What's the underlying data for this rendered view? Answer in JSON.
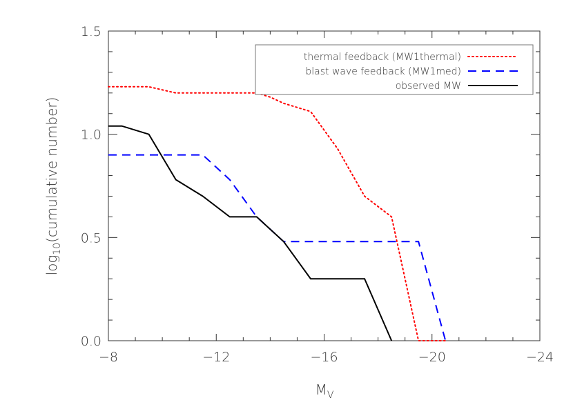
{
  "chart_data": {
    "type": "line",
    "xlabel": "M",
    "xlabel_sub": "V",
    "ylabel": "log",
    "ylabel_sub": "10",
    "ylabel_rest": "(cumulative number)",
    "xlim": [
      -8,
      -24
    ],
    "ylim": [
      0,
      1.5
    ],
    "x_ticks": [
      -8,
      -12,
      -16,
      -20,
      -24
    ],
    "x_tick_labels": [
      "−8",
      "−12",
      "−16",
      "−20",
      "−24"
    ],
    "y_ticks": [
      0,
      0.5,
      1.0,
      1.5
    ],
    "y_tick_labels": [
      "0.0",
      "0.5",
      "1.0",
      "1.5"
    ],
    "grid": false,
    "legend_position": "top-right",
    "series": [
      {
        "name": "thermal feedback (MW1thermal)",
        "color": "#ff0000",
        "style": "dotted",
        "points": [
          [
            -8,
            1.23
          ],
          [
            -9.5,
            1.23
          ],
          [
            -10.5,
            1.2
          ],
          [
            -11.5,
            1.2
          ],
          [
            -12.5,
            1.2
          ],
          [
            -13.5,
            1.2
          ],
          [
            -14,
            1.18
          ],
          [
            -14.5,
            1.15
          ],
          [
            -15.5,
            1.11
          ],
          [
            -16.5,
            0.93
          ],
          [
            -17.5,
            0.7
          ],
          [
            -18.5,
            0.6
          ],
          [
            -19.5,
            0
          ],
          [
            -20.5,
            0
          ]
        ]
      },
      {
        "name": "blast wave feedback (MW1med)",
        "color": "#0000ff",
        "style": "dashed",
        "points": [
          [
            -8,
            0.9
          ],
          [
            -11.5,
            0.9
          ],
          [
            -12.5,
            0.78
          ],
          [
            -13.5,
            0.6
          ],
          [
            -14.5,
            0.48
          ],
          [
            -19.5,
            0.48
          ],
          [
            -20.5,
            0
          ]
        ]
      },
      {
        "name": "observed MW",
        "color": "#000000",
        "style": "solid",
        "points": [
          [
            -8,
            1.04
          ],
          [
            -8.5,
            1.04
          ],
          [
            -9.5,
            1.0
          ],
          [
            -10.5,
            0.78
          ],
          [
            -11.5,
            0.7
          ],
          [
            -12.5,
            0.6
          ],
          [
            -13.5,
            0.6
          ],
          [
            -14.5,
            0.48
          ],
          [
            -15.5,
            0.3
          ],
          [
            -17.5,
            0.3
          ],
          [
            -18.5,
            0
          ]
        ]
      }
    ]
  }
}
